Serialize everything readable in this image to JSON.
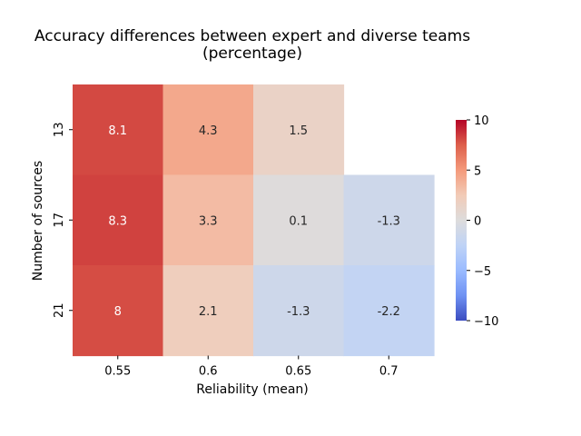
{
  "chart_data": {
    "type": "heatmap",
    "title": "Accuracy differences between expert and diverse teams\n(percentage)",
    "xlabel": "Reliability (mean)",
    "ylabel": "Number of sources",
    "x_categories": [
      "0.55",
      "0.6",
      "0.65",
      "0.7"
    ],
    "y_categories": [
      "13",
      "17",
      "21"
    ],
    "values": [
      [
        8.1,
        4.3,
        1.5,
        null
      ],
      [
        8.3,
        3.3,
        0.1,
        -1.3
      ],
      [
        8.0,
        2.1,
        -1.3,
        -2.2
      ]
    ],
    "cell_labels": [
      [
        "8.1",
        "4.3",
        "1.5",
        ""
      ],
      [
        "8.3",
        "3.3",
        "0.1",
        "-1.3"
      ],
      [
        "8",
        "2.1",
        "-1.3",
        "-2.2"
      ]
    ],
    "colorbar": {
      "colormap": "coolwarm",
      "range": [
        -10,
        10
      ],
      "ticks": [
        10,
        5,
        0,
        -5,
        -10
      ],
      "tick_labels": [
        "10",
        "5",
        "0",
        "−5",
        "−10"
      ],
      "placement": "right"
    },
    "grid": false
  }
}
